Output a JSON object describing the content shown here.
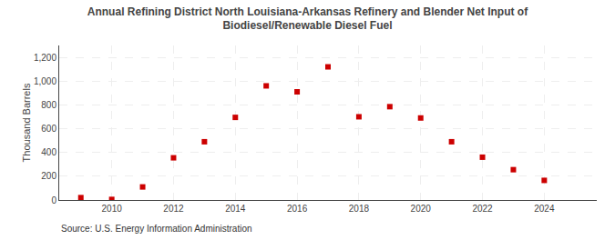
{
  "chart_data": {
    "type": "scatter",
    "title": "Annual Refining District North Louisiana-Arkansas Refinery and Blender Net Input of\nBiodiesel/Renewable Diesel Fuel",
    "ylabel": "Thousand Barrels",
    "annotations": [
      "Source: U.S. Energy Information Administration"
    ],
    "x": [
      2009,
      2010,
      2011,
      2012,
      2013,
      2014,
      2015,
      2016,
      2017,
      2018,
      2019,
      2020,
      2021,
      2022,
      2023,
      2024
    ],
    "values": [
      20,
      5,
      110,
      355,
      490,
      695,
      960,
      910,
      1120,
      700,
      785,
      690,
      490,
      360,
      255,
      165
    ],
    "color": "#cc0000",
    "marker": "square",
    "xlim": [
      2008.3,
      2025.7
    ],
    "xticks": [
      2010,
      2012,
      2014,
      2016,
      2018,
      2020,
      2022,
      2024
    ],
    "ylim": [
      0,
      1300
    ],
    "yticks": [
      0,
      200,
      400,
      600,
      800,
      {
        "value": 1000,
        "label": "1,000"
      },
      {
        "value": 1200,
        "label": "1,200"
      }
    ],
    "grid": true
  }
}
